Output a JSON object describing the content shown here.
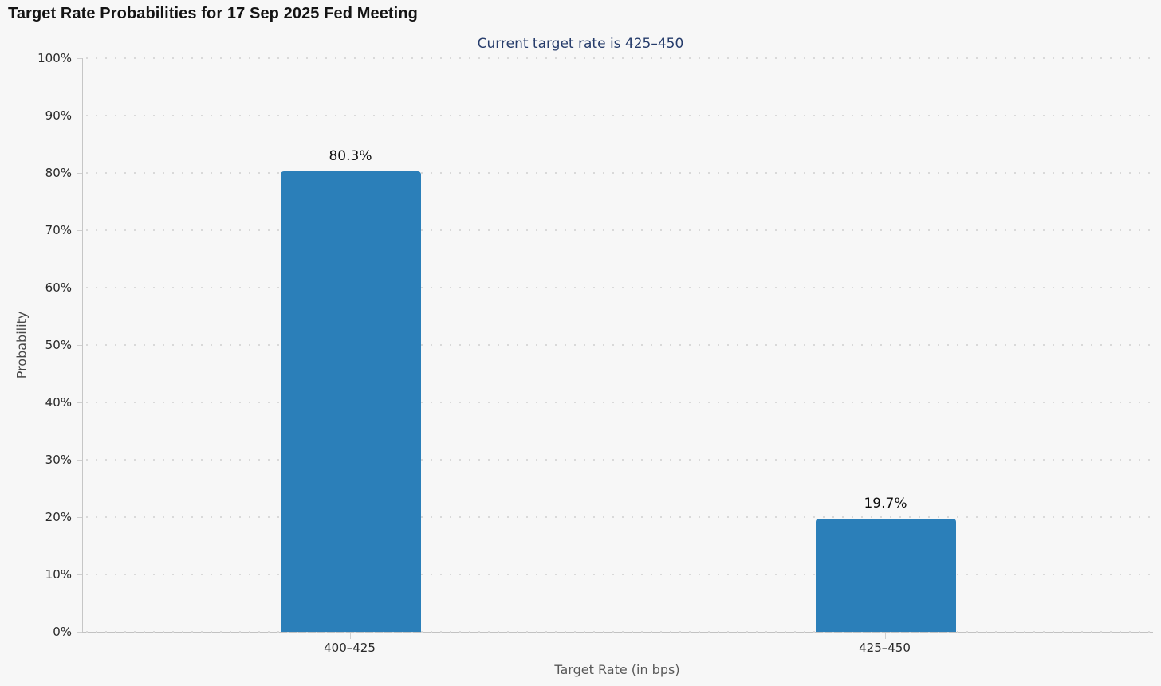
{
  "colors": {
    "background": "#f7f7f7",
    "bar": "#2b7fb9",
    "subtitle_text": "#263c6b",
    "gridline": "#d9d9d9",
    "axis_line": "#c6c6c6",
    "tick_label": "#2a2a2a",
    "axis_title": "#585858",
    "title_text": "#141414",
    "value_label": "#0d0d0d"
  },
  "chart_data": {
    "type": "bar",
    "title": "Target Rate Probabilities for 17 Sep 2025 Fed Meeting",
    "subtitle": "Current target rate is 425–450",
    "categories": [
      "400–425",
      "425–450"
    ],
    "values": [
      80.3,
      19.7
    ],
    "value_labels": [
      "80.3%",
      "19.7%"
    ],
    "xlabel": "Target Rate (in bps)",
    "ylabel": "Probability",
    "ylim": [
      0,
      100
    ],
    "yticks": [
      0,
      10,
      20,
      30,
      40,
      50,
      60,
      70,
      80,
      90,
      100
    ],
    "ytick_labels": [
      "0%",
      "10%",
      "20%",
      "30%",
      "40%",
      "50%",
      "60%",
      "70%",
      "80%",
      "90%",
      "100%"
    ],
    "grid": "horizontal-dotted",
    "legend": "none",
    "bar_color": "#2b7fb9"
  }
}
